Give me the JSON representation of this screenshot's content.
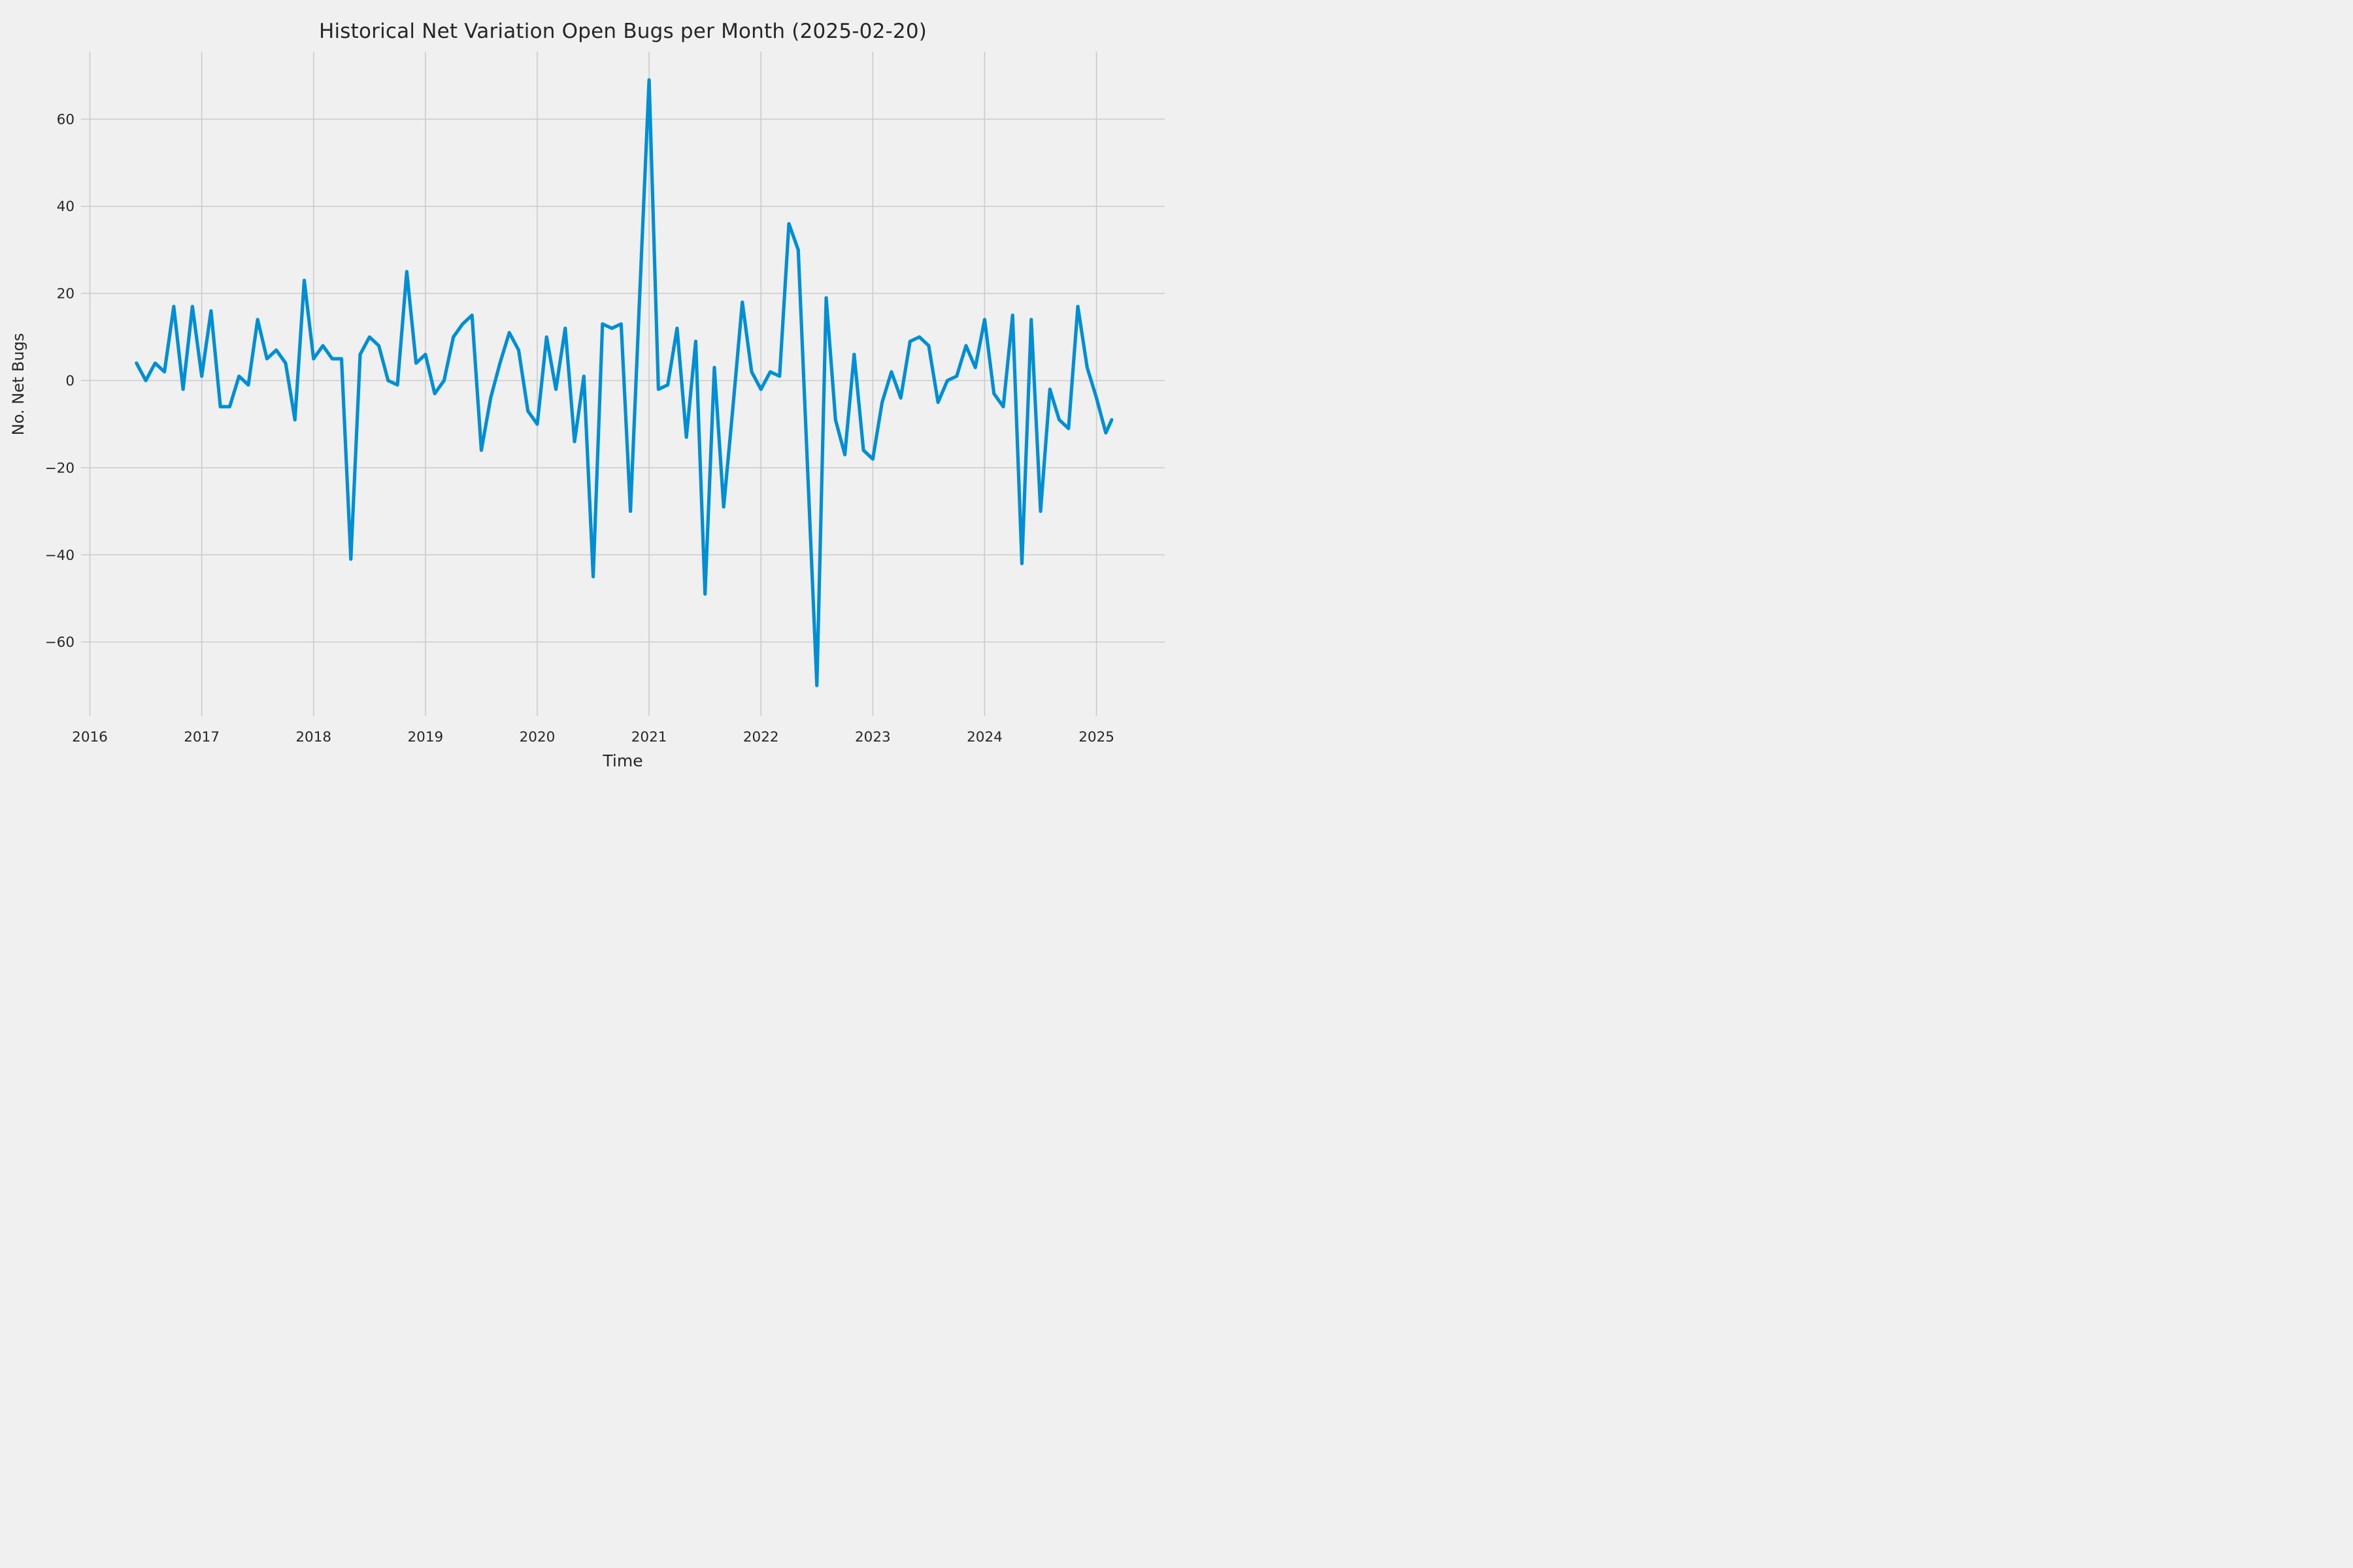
{
  "chart_data": {
    "type": "line",
    "title": "Historical Net Variation Open Bugs per Month (2025-02-20)",
    "xlabel": "Time",
    "ylabel": "No. Net Bugs",
    "legend_position": "none",
    "grid": true,
    "x_tick_labels": [
      "2016",
      "2017",
      "2018",
      "2019",
      "2020",
      "2021",
      "2022",
      "2023",
      "2024",
      "2025"
    ],
    "y_tick_labels": [
      "−60",
      "−40",
      "−20",
      "0",
      "20",
      "40",
      "60"
    ],
    "y_tick_values": [
      -60,
      -40,
      -20,
      0,
      20,
      40,
      60
    ],
    "ylim": [
      -77,
      75.5
    ],
    "xlim_months_from_2016_01": [
      -0.95,
      115.3
    ],
    "colors": {
      "line": "#008fd5",
      "background": "#f0f0f0",
      "grid": "#cbcbcb",
      "text": "#262626"
    },
    "series": [
      {
        "name": "net_open_bugs_per_month",
        "points": [
          {
            "d": "2016-06",
            "v": 4
          },
          {
            "d": "2016-07",
            "v": 0
          },
          {
            "d": "2016-08",
            "v": 4
          },
          {
            "d": "2016-09",
            "v": 2
          },
          {
            "d": "2016-10",
            "v": 17
          },
          {
            "d": "2016-11",
            "v": -2
          },
          {
            "d": "2016-12",
            "v": 17
          },
          {
            "d": "2017-01",
            "v": 1
          },
          {
            "d": "2017-02",
            "v": 16
          },
          {
            "d": "2017-03",
            "v": -6
          },
          {
            "d": "2017-04",
            "v": -6
          },
          {
            "d": "2017-05",
            "v": 1
          },
          {
            "d": "2017-06",
            "v": -1
          },
          {
            "d": "2017-07",
            "v": 14
          },
          {
            "d": "2017-08",
            "v": 5
          },
          {
            "d": "2017-09",
            "v": 7
          },
          {
            "d": "2017-10",
            "v": 4
          },
          {
            "d": "2017-11",
            "v": -9
          },
          {
            "d": "2017-12",
            "v": 23
          },
          {
            "d": "2018-01",
            "v": 5
          },
          {
            "d": "2018-02",
            "v": 8
          },
          {
            "d": "2018-03",
            "v": 5
          },
          {
            "d": "2018-04",
            "v": 5
          },
          {
            "d": "2018-05",
            "v": -41
          },
          {
            "d": "2018-06",
            "v": 6
          },
          {
            "d": "2018-07",
            "v": 10
          },
          {
            "d": "2018-08",
            "v": 8
          },
          {
            "d": "2018-09",
            "v": 0
          },
          {
            "d": "2018-10",
            "v": -1
          },
          {
            "d": "2018-11",
            "v": 25
          },
          {
            "d": "2018-12",
            "v": 4
          },
          {
            "d": "2019-01",
            "v": 6
          },
          {
            "d": "2019-02",
            "v": -3
          },
          {
            "d": "2019-03",
            "v": 0
          },
          {
            "d": "2019-04",
            "v": 10
          },
          {
            "d": "2019-05",
            "v": 13
          },
          {
            "d": "2019-06",
            "v": 15
          },
          {
            "d": "2019-07",
            "v": -16
          },
          {
            "d": "2019-08",
            "v": -4
          },
          {
            "d": "2019-09",
            "v": 4
          },
          {
            "d": "2019-10",
            "v": 11
          },
          {
            "d": "2019-11",
            "v": 7
          },
          {
            "d": "2019-12",
            "v": -7
          },
          {
            "d": "2020-01",
            "v": -10
          },
          {
            "d": "2020-02",
            "v": 10
          },
          {
            "d": "2020-03",
            "v": -2
          },
          {
            "d": "2020-04",
            "v": 12
          },
          {
            "d": "2020-05",
            "v": -14
          },
          {
            "d": "2020-06",
            "v": 1
          },
          {
            "d": "2020-07",
            "v": -45
          },
          {
            "d": "2020-08",
            "v": 13
          },
          {
            "d": "2020-09",
            "v": 12
          },
          {
            "d": "2020-10",
            "v": 13
          },
          {
            "d": "2020-11",
            "v": -30
          },
          {
            "d": "2020-12",
            "v": 20
          },
          {
            "d": "2021-01",
            "v": 69
          },
          {
            "d": "2021-02",
            "v": -2
          },
          {
            "d": "2021-03",
            "v": -1
          },
          {
            "d": "2021-04",
            "v": 12
          },
          {
            "d": "2021-05",
            "v": -13
          },
          {
            "d": "2021-06",
            "v": 9
          },
          {
            "d": "2021-07",
            "v": -49
          },
          {
            "d": "2021-08",
            "v": 3
          },
          {
            "d": "2021-09",
            "v": -29
          },
          {
            "d": "2021-10",
            "v": -6
          },
          {
            "d": "2021-11",
            "v": 18
          },
          {
            "d": "2021-12",
            "v": 2
          },
          {
            "d": "2022-01",
            "v": -2
          },
          {
            "d": "2022-02",
            "v": 2
          },
          {
            "d": "2022-03",
            "v": 1
          },
          {
            "d": "2022-04",
            "v": 36
          },
          {
            "d": "2022-05",
            "v": 30
          },
          {
            "d": "2022-06",
            "v": -20
          },
          {
            "d": "2022-07",
            "v": -70
          },
          {
            "d": "2022-08",
            "v": 19
          },
          {
            "d": "2022-09",
            "v": -9
          },
          {
            "d": "2022-10",
            "v": -17
          },
          {
            "d": "2022-11",
            "v": 6
          },
          {
            "d": "2022-12",
            "v": -16
          },
          {
            "d": "2023-01",
            "v": -18
          },
          {
            "d": "2023-02",
            "v": -5
          },
          {
            "d": "2023-03",
            "v": 2
          },
          {
            "d": "2023-04",
            "v": -4
          },
          {
            "d": "2023-05",
            "v": 9
          },
          {
            "d": "2023-06",
            "v": 10
          },
          {
            "d": "2023-07",
            "v": 8
          },
          {
            "d": "2023-08",
            "v": -5
          },
          {
            "d": "2023-09",
            "v": 0
          },
          {
            "d": "2023-10",
            "v": 1
          },
          {
            "d": "2023-11",
            "v": 8
          },
          {
            "d": "2023-12",
            "v": 3
          },
          {
            "d": "2024-01",
            "v": 14
          },
          {
            "d": "2024-02",
            "v": -3
          },
          {
            "d": "2024-03",
            "v": -6
          },
          {
            "d": "2024-04",
            "v": 15
          },
          {
            "d": "2024-05",
            "v": -42
          },
          {
            "d": "2024-06",
            "v": 14
          },
          {
            "d": "2024-07",
            "v": -30
          },
          {
            "d": "2024-08",
            "v": -2
          },
          {
            "d": "2024-09",
            "v": -9
          },
          {
            "d": "2024-10",
            "v": -11
          },
          {
            "d": "2024-11",
            "v": 17
          },
          {
            "d": "2024-12",
            "v": 3
          },
          {
            "d": "2025-01",
            "v": -4
          },
          {
            "d": "2025-02",
            "v": -12
          },
          {
            "d": "2025-02-20",
            "v": -9
          }
        ]
      }
    ]
  }
}
